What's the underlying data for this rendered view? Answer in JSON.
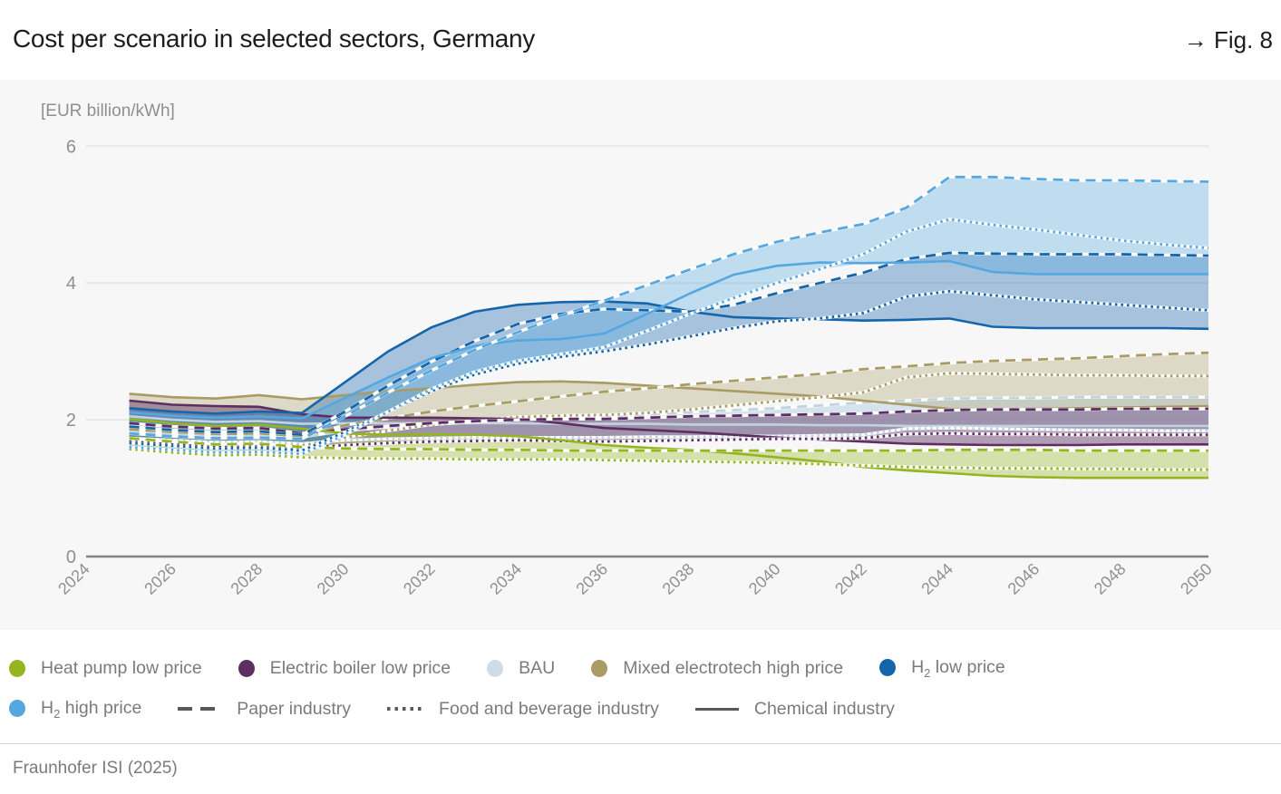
{
  "header": {
    "title": "Cost per scenario in selected sectors, Germany",
    "fig_label": "→ Fig. 8"
  },
  "footer": {
    "source": "Fraunhofer ISI (2025)"
  },
  "chart_data": {
    "type": "line",
    "title": "Cost per scenario in selected sectors, Germany",
    "unit_label": "[EUR billion/kWh]",
    "ylim": [
      0,
      6
    ],
    "y_ticks": [
      0,
      2,
      4,
      6
    ],
    "x_ticks": [
      2024,
      2026,
      2028,
      2030,
      2032,
      2034,
      2036,
      2038,
      2040,
      2042,
      2044,
      2046,
      2048,
      2050
    ],
    "x": [
      2025,
      2026,
      2027,
      2028,
      2029,
      2030,
      2031,
      2032,
      2033,
      2034,
      2035,
      2036,
      2037,
      2038,
      2039,
      2040,
      2041,
      2042,
      2043,
      2044,
      2045,
      2046,
      2047,
      2048,
      2049,
      2050
    ],
    "grid": true,
    "legend_position": "bottom",
    "scenarios": [
      {
        "id": "heat_pump",
        "label": "Heat pump low price",
        "color": "#94b51f",
        "line_color": "#94b51f"
      },
      {
        "id": "electric_boiler",
        "label": "Electric boiler low price",
        "color": "#5c2e62",
        "line_color": "#5c2e62"
      },
      {
        "id": "bau",
        "label": "BAU",
        "color": "#cddde8",
        "line_color": "#c2d3e0"
      },
      {
        "id": "mixed_electrotech",
        "label": "Mixed electrotech high price",
        "color": "#a99b63",
        "line_color": "#a99b63"
      },
      {
        "id": "h2_low",
        "label": "H₂ low price",
        "color": "#1565ab",
        "line_color": "#1565ab"
      },
      {
        "id": "h2_high",
        "label": "H₂ high price",
        "color": "#55a7e0",
        "line_color": "#55a7e0"
      }
    ],
    "sectors": [
      {
        "id": "paper",
        "label": "Paper industry",
        "style": "dashed"
      },
      {
        "id": "food",
        "label": "Food and beverage industry",
        "style": "dotted"
      },
      {
        "id": "chemical",
        "label": "Chemical industry",
        "style": "solid"
      }
    ],
    "series": [
      {
        "scenario": "h2_high",
        "sector": "paper",
        "values": [
          1.8,
          1.76,
          1.73,
          1.74,
          1.72,
          2.05,
          2.4,
          2.72,
          3.02,
          3.28,
          3.52,
          3.74,
          3.97,
          4.2,
          4.42,
          4.6,
          4.74,
          4.86,
          5.1,
          5.55,
          5.55,
          5.52,
          5.5,
          5.5,
          5.49,
          5.48
        ]
      },
      {
        "scenario": "h2_high",
        "sector": "food",
        "values": [
          1.6,
          1.56,
          1.52,
          1.53,
          1.5,
          1.78,
          2.12,
          2.45,
          2.7,
          2.86,
          2.96,
          3.06,
          3.3,
          3.55,
          3.78,
          4.0,
          4.2,
          4.42,
          4.75,
          4.93,
          4.85,
          4.78,
          4.7,
          4.62,
          4.56,
          4.51
        ]
      },
      {
        "scenario": "h2_high",
        "sector": "chemical",
        "values": [
          2.11,
          2.06,
          2.03,
          2.05,
          2.02,
          2.32,
          2.62,
          2.9,
          3.08,
          3.16,
          3.18,
          3.26,
          3.55,
          3.85,
          4.12,
          4.25,
          4.3,
          4.29,
          4.3,
          4.32,
          4.16,
          4.13,
          4.13,
          4.13,
          4.13,
          4.13
        ]
      },
      {
        "scenario": "h2_low",
        "sector": "paper",
        "values": [
          1.9,
          1.85,
          1.82,
          1.83,
          1.78,
          2.12,
          2.5,
          2.85,
          3.15,
          3.4,
          3.55,
          3.62,
          3.6,
          3.58,
          3.68,
          3.85,
          4.0,
          4.15,
          4.35,
          4.44,
          4.43,
          4.42,
          4.42,
          4.42,
          4.41,
          4.4
        ]
      },
      {
        "scenario": "h2_low",
        "sector": "food",
        "values": [
          1.66,
          1.62,
          1.58,
          1.59,
          1.55,
          1.82,
          2.12,
          2.42,
          2.66,
          2.82,
          2.92,
          3.0,
          3.1,
          3.22,
          3.34,
          3.44,
          3.48,
          3.56,
          3.8,
          3.88,
          3.82,
          3.76,
          3.72,
          3.68,
          3.64,
          3.6
        ]
      },
      {
        "scenario": "h2_low",
        "sector": "chemical",
        "values": [
          2.17,
          2.12,
          2.09,
          2.12,
          2.1,
          2.55,
          3.0,
          3.35,
          3.58,
          3.68,
          3.72,
          3.73,
          3.7,
          3.58,
          3.5,
          3.48,
          3.47,
          3.45,
          3.46,
          3.48,
          3.36,
          3.34,
          3.34,
          3.34,
          3.34,
          3.33
        ]
      },
      {
        "scenario": "mixed_electrotech",
        "sector": "paper",
        "values": [
          1.86,
          1.82,
          1.79,
          1.8,
          1.76,
          1.92,
          2.02,
          2.12,
          2.2,
          2.27,
          2.34,
          2.41,
          2.46,
          2.52,
          2.57,
          2.62,
          2.67,
          2.74,
          2.78,
          2.83,
          2.86,
          2.88,
          2.9,
          2.93,
          2.96,
          2.98
        ]
      },
      {
        "scenario": "mixed_electrotech",
        "sector": "food",
        "values": [
          1.71,
          1.67,
          1.64,
          1.65,
          1.62,
          1.74,
          1.84,
          1.93,
          1.99,
          2.04,
          2.06,
          2.07,
          2.1,
          2.15,
          2.21,
          2.27,
          2.33,
          2.4,
          2.62,
          2.68,
          2.67,
          2.66,
          2.65,
          2.65,
          2.64,
          2.64
        ]
      },
      {
        "scenario": "mixed_electrotech",
        "sector": "chemical",
        "values": [
          2.38,
          2.33,
          2.31,
          2.36,
          2.3,
          2.36,
          2.42,
          2.46,
          2.51,
          2.55,
          2.56,
          2.54,
          2.5,
          2.46,
          2.42,
          2.38,
          2.34,
          2.28,
          2.22,
          2.16,
          2.15,
          2.16,
          2.17,
          2.18,
          2.19,
          2.2
        ]
      },
      {
        "scenario": "bau",
        "sector": "paper",
        "values": [
          1.82,
          1.79,
          1.77,
          1.78,
          1.75,
          1.84,
          1.89,
          1.93,
          1.97,
          2.0,
          2.02,
          2.05,
          2.08,
          2.11,
          2.14,
          2.17,
          2.21,
          2.25,
          2.28,
          2.31,
          2.32,
          2.32,
          2.33,
          2.33,
          2.33,
          2.33
        ]
      },
      {
        "scenario": "bau",
        "sector": "food",
        "values": [
          1.73,
          1.7,
          1.67,
          1.68,
          1.65,
          1.7,
          1.72,
          1.73,
          1.74,
          1.74,
          1.74,
          1.74,
          1.75,
          1.75,
          1.76,
          1.76,
          1.77,
          1.78,
          1.87,
          1.88,
          1.87,
          1.86,
          1.85,
          1.85,
          1.84,
          1.84
        ]
      },
      {
        "scenario": "bau",
        "sector": "chemical",
        "values": [
          2.05,
          2.0,
          1.97,
          1.98,
          1.94,
          1.95,
          1.95,
          1.95,
          1.95,
          1.95,
          1.94,
          1.94,
          1.94,
          1.93,
          1.93,
          1.93,
          1.92,
          1.92,
          1.91,
          1.91,
          1.91,
          1.91,
          1.91,
          1.91,
          1.91,
          1.91
        ]
      },
      {
        "scenario": "electric_boiler",
        "sector": "paper",
        "values": [
          1.95,
          1.9,
          1.87,
          1.88,
          1.8,
          1.86,
          1.91,
          1.95,
          1.98,
          2.0,
          2.01,
          2.01,
          2.03,
          2.05,
          2.06,
          2.07,
          2.08,
          2.09,
          2.12,
          2.14,
          2.15,
          2.15,
          2.15,
          2.16,
          2.16,
          2.16
        ]
      },
      {
        "scenario": "electric_boiler",
        "sector": "food",
        "values": [
          1.68,
          1.64,
          1.61,
          1.62,
          1.58,
          1.63,
          1.66,
          1.68,
          1.69,
          1.7,
          1.69,
          1.68,
          1.69,
          1.7,
          1.71,
          1.72,
          1.72,
          1.73,
          1.79,
          1.8,
          1.79,
          1.79,
          1.78,
          1.78,
          1.78,
          1.78
        ]
      },
      {
        "scenario": "electric_boiler",
        "sector": "chemical",
        "values": [
          2.28,
          2.22,
          2.2,
          2.19,
          2.08,
          2.03,
          2.03,
          2.03,
          2.02,
          2.01,
          1.95,
          1.88,
          1.85,
          1.82,
          1.78,
          1.74,
          1.71,
          1.68,
          1.65,
          1.64,
          1.63,
          1.63,
          1.63,
          1.64,
          1.64,
          1.64
        ]
      },
      {
        "scenario": "heat_pump",
        "sector": "paper",
        "values": [
          1.73,
          1.68,
          1.64,
          1.65,
          1.6,
          1.58,
          1.57,
          1.57,
          1.56,
          1.56,
          1.55,
          1.55,
          1.55,
          1.55,
          1.55,
          1.55,
          1.55,
          1.55,
          1.55,
          1.56,
          1.56,
          1.56,
          1.55,
          1.55,
          1.55,
          1.55
        ]
      },
      {
        "scenario": "heat_pump",
        "sector": "food",
        "values": [
          1.57,
          1.52,
          1.48,
          1.49,
          1.45,
          1.44,
          1.43,
          1.43,
          1.42,
          1.42,
          1.42,
          1.41,
          1.4,
          1.39,
          1.38,
          1.37,
          1.35,
          1.33,
          1.31,
          1.3,
          1.29,
          1.29,
          1.28,
          1.28,
          1.27,
          1.27
        ]
      },
      {
        "scenario": "heat_pump",
        "sector": "chemical",
        "values": [
          2.01,
          1.95,
          1.91,
          1.93,
          1.87,
          1.8,
          1.78,
          1.79,
          1.78,
          1.76,
          1.7,
          1.63,
          1.59,
          1.56,
          1.51,
          1.45,
          1.39,
          1.31,
          1.26,
          1.22,
          1.18,
          1.16,
          1.15,
          1.15,
          1.15,
          1.15
        ]
      }
    ]
  },
  "legend": {
    "rows": [
      [
        {
          "type": "dot",
          "scenario": "heat_pump",
          "label": "Heat pump low price"
        },
        {
          "type": "dot",
          "scenario": "electric_boiler",
          "label": "Electric boiler low price"
        },
        {
          "type": "dot",
          "scenario": "bau",
          "label": "BAU"
        },
        {
          "type": "dot",
          "scenario": "mixed_electrotech",
          "label": "Mixed electrotech high price"
        },
        {
          "type": "dot",
          "scenario": "h2_low",
          "label": "H₂ low price"
        }
      ],
      [
        {
          "type": "dot",
          "scenario": "h2_high",
          "label": "H₂ high price"
        },
        {
          "type": "dash",
          "label": "Paper industry"
        },
        {
          "type": "dots",
          "label": "Food and beverage industry"
        },
        {
          "type": "line",
          "label": "Chemical industry"
        }
      ]
    ]
  }
}
